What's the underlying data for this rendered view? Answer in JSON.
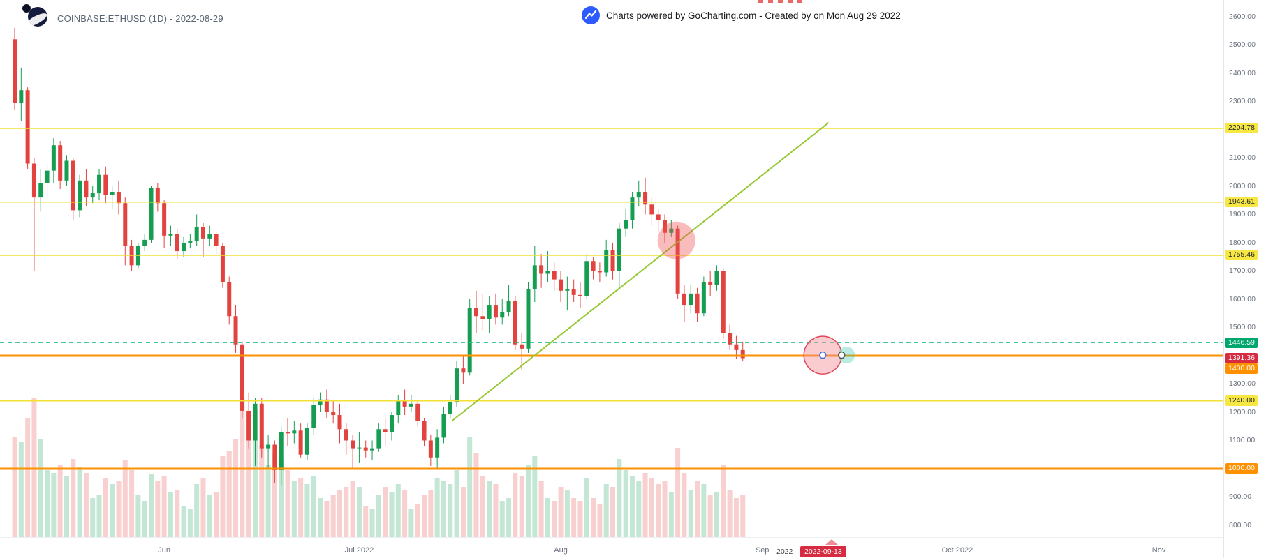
{
  "header": {
    "symbol_title": "COINBASE:ETHUSD (1D) - 2022-08-29",
    "powered_by": "Charts powered by GoCharting.com - Created by  on Mon Aug 29 2022"
  },
  "icons": {
    "logo": "gocharting-logo",
    "powered": "chart-line"
  },
  "colors": {
    "up": "#159d52",
    "down": "#e2433e",
    "volume_opacity": 0.25,
    "yellow_line": "#f2e032",
    "orange_line": "#ff9100",
    "teal_line": "#2bc08a",
    "trendline": "#97c832",
    "ellipse_fill": "rgba(240,80,80,0.38)",
    "selected_ellipse_fill": "rgba(244,143,150,0.45)",
    "selected_ellipse_stroke": "#e0485a",
    "handle_glow": "rgba(56,199,171,0.35)",
    "axis_text": "#69707d"
  },
  "chart_data": {
    "type": "candlestick",
    "title": "COINBASE:ETHUSD (1D) - 2022-08-29",
    "symbol": "COINBASE:ETHUSD",
    "interval": "1D",
    "last_price": {
      "value": 1391.36,
      "label": "1391.36"
    },
    "price_axis": {
      "min": 758,
      "max": 2659,
      "ticks": [
        2600,
        2500,
        2400,
        2300,
        2200,
        2100,
        2000,
        1900,
        1800,
        1700,
        1600,
        1500,
        1400,
        1300,
        1200,
        1100,
        1000,
        900,
        800
      ]
    },
    "time_axis": {
      "labels": [
        {
          "text": "Jun",
          "day": 23
        },
        {
          "text": "Jul 2022",
          "day": 53
        },
        {
          "text": "Aug",
          "day": 84
        },
        {
          "text": "Sep",
          "day": 115
        },
        {
          "text": "Oct 2022",
          "day": 145
        },
        {
          "text": "Nov",
          "day": 176
        }
      ]
    },
    "horizontal_lines": [
      {
        "price": 2204.78,
        "label": "2204.78",
        "style": "yellow"
      },
      {
        "price": 1943.61,
        "label": "1943.61",
        "style": "yellow"
      },
      {
        "price": 1755.46,
        "label": "1755.46",
        "style": "yellow"
      },
      {
        "price": 1240.0,
        "label": "1240.00",
        "style": "yellow"
      },
      {
        "price": 1400.0,
        "label": "1400.00",
        "style": "orange",
        "label_offset": 19
      },
      {
        "price": 1000.0,
        "label": "1000.00",
        "style": "orange"
      },
      {
        "price": 1446.59,
        "label": "1446.59",
        "style": "teal",
        "dashed": true
      }
    ],
    "trendline": {
      "from_day": 67.3,
      "from_price": 1170,
      "to_day": 125.2,
      "to_price": 2225
    },
    "ellipses": [
      {
        "day": 101.8,
        "price": 1808,
        "r": 27,
        "selected": false
      },
      {
        "day": 124.3,
        "price": 1402,
        "r": 27,
        "selected": true
      }
    ],
    "selection": {
      "left_text": "2022",
      "date_label": "2022-09-13"
    },
    "candles": [
      [
        2520,
        2560,
        2270,
        2295,
        72
      ],
      [
        2295,
        2420,
        2230,
        2340,
        68
      ],
      [
        2340,
        2350,
        2060,
        2080,
        85
      ],
      [
        2080,
        2100,
        1700,
        1960,
        100
      ],
      [
        1960,
        2060,
        1910,
        2010,
        70
      ],
      [
        2010,
        2080,
        1960,
        2055,
        48
      ],
      [
        2055,
        2170,
        2010,
        2145,
        46
      ],
      [
        2145,
        2160,
        1990,
        2020,
        52
      ],
      [
        2020,
        2110,
        2000,
        2090,
        44
      ],
      [
        2090,
        2100,
        1880,
        1915,
        56
      ],
      [
        1915,
        2040,
        1890,
        2020,
        50
      ],
      [
        2020,
        2060,
        1930,
        1960,
        46
      ],
      [
        1960,
        2000,
        1940,
        1975,
        28
      ],
      [
        1975,
        2060,
        1950,
        2040,
        30
      ],
      [
        2040,
        2070,
        1940,
        1970,
        42
      ],
      [
        1970,
        2000,
        1920,
        1980,
        38
      ],
      [
        1980,
        2020,
        1900,
        1940,
        40
      ],
      [
        1940,
        1960,
        1720,
        1790,
        55
      ],
      [
        1790,
        1810,
        1700,
        1720,
        48
      ],
      [
        1720,
        1800,
        1710,
        1790,
        30
      ],
      [
        1790,
        1830,
        1770,
        1810,
        26
      ],
      [
        1810,
        2000,
        1800,
        1995,
        45
      ],
      [
        1995,
        2010,
        1910,
        1940,
        40
      ],
      [
        1940,
        1950,
        1780,
        1825,
        44
      ],
      [
        1825,
        1860,
        1790,
        1830,
        32
      ],
      [
        1830,
        1850,
        1740,
        1770,
        34
      ],
      [
        1770,
        1820,
        1750,
        1800,
        22
      ],
      [
        1800,
        1830,
        1780,
        1805,
        20
      ],
      [
        1805,
        1900,
        1790,
        1855,
        38
      ],
      [
        1855,
        1870,
        1750,
        1815,
        42
      ],
      [
        1815,
        1860,
        1790,
        1830,
        30
      ],
      [
        1830,
        1840,
        1760,
        1790,
        32
      ],
      [
        1790,
        1800,
        1640,
        1660,
        58
      ],
      [
        1660,
        1680,
        1510,
        1540,
        62
      ],
      [
        1540,
        1580,
        1410,
        1440,
        70
      ],
      [
        1440,
        1450,
        1180,
        1205,
        100
      ],
      [
        1205,
        1270,
        1070,
        1100,
        88
      ],
      [
        1100,
        1250,
        1010,
        1230,
        92
      ],
      [
        1230,
        1250,
        1040,
        1070,
        66
      ],
      [
        1070,
        1120,
        1000,
        1085,
        52
      ],
      [
        1085,
        1100,
        950,
        995,
        60
      ],
      [
        995,
        1150,
        940,
        1130,
        55
      ],
      [
        1130,
        1180,
        1080,
        1125,
        48
      ],
      [
        1125,
        1170,
        1090,
        1135,
        40
      ],
      [
        1135,
        1160,
        1040,
        1050,
        42
      ],
      [
        1050,
        1160,
        1030,
        1145,
        38
      ],
      [
        1145,
        1250,
        1120,
        1225,
        44
      ],
      [
        1225,
        1270,
        1200,
        1245,
        28
      ],
      [
        1245,
        1280,
        1180,
        1200,
        26
      ],
      [
        1200,
        1240,
        1160,
        1190,
        30
      ],
      [
        1190,
        1230,
        1090,
        1140,
        34
      ],
      [
        1140,
        1160,
        1050,
        1100,
        36
      ],
      [
        1100,
        1120,
        1000,
        1070,
        40
      ],
      [
        1070,
        1130,
        1020,
        1075,
        36
      ],
      [
        1075,
        1100,
        1040,
        1065,
        22
      ],
      [
        1065,
        1100,
        1030,
        1070,
        20
      ],
      [
        1070,
        1160,
        1060,
        1140,
        30
      ],
      [
        1140,
        1180,
        1080,
        1130,
        36
      ],
      [
        1130,
        1200,
        1100,
        1190,
        32
      ],
      [
        1190,
        1260,
        1160,
        1240,
        38
      ],
      [
        1240,
        1280,
        1190,
        1220,
        34
      ],
      [
        1220,
        1260,
        1200,
        1230,
        20
      ],
      [
        1230,
        1240,
        1150,
        1170,
        24
      ],
      [
        1170,
        1180,
        1080,
        1100,
        30
      ],
      [
        1100,
        1120,
        1010,
        1040,
        34
      ],
      [
        1040,
        1140,
        1000,
        1110,
        42
      ],
      [
        1110,
        1220,
        1090,
        1195,
        40
      ],
      [
        1195,
        1260,
        1180,
        1235,
        38
      ],
      [
        1235,
        1380,
        1220,
        1355,
        48
      ],
      [
        1355,
        1400,
        1300,
        1340,
        36
      ],
      [
        1340,
        1600,
        1330,
        1570,
        72
      ],
      [
        1570,
        1630,
        1480,
        1540,
        60
      ],
      [
        1540,
        1620,
        1490,
        1530,
        44
      ],
      [
        1530,
        1610,
        1480,
        1580,
        40
      ],
      [
        1580,
        1620,
        1510,
        1535,
        38
      ],
      [
        1535,
        1600,
        1510,
        1555,
        26
      ],
      [
        1555,
        1650,
        1540,
        1595,
        28
      ],
      [
        1595,
        1610,
        1420,
        1440,
        46
      ],
      [
        1440,
        1480,
        1350,
        1425,
        44
      ],
      [
        1425,
        1660,
        1410,
        1635,
        52
      ],
      [
        1635,
        1790,
        1590,
        1720,
        58
      ],
      [
        1720,
        1760,
        1640,
        1690,
        40
      ],
      [
        1690,
        1770,
        1660,
        1700,
        28
      ],
      [
        1700,
        1730,
        1630,
        1670,
        26
      ],
      [
        1670,
        1700,
        1590,
        1630,
        36
      ],
      [
        1630,
        1680,
        1560,
        1635,
        34
      ],
      [
        1635,
        1670,
        1590,
        1615,
        28
      ],
      [
        1615,
        1660,
        1570,
        1610,
        26
      ],
      [
        1610,
        1760,
        1600,
        1735,
        42
      ],
      [
        1735,
        1750,
        1670,
        1700,
        28
      ],
      [
        1700,
        1730,
        1660,
        1695,
        24
      ],
      [
        1695,
        1810,
        1680,
        1775,
        38
      ],
      [
        1775,
        1800,
        1670,
        1700,
        36
      ],
      [
        1700,
        1870,
        1640,
        1850,
        56
      ],
      [
        1850,
        1920,
        1820,
        1880,
        48
      ],
      [
        1880,
        1980,
        1850,
        1960,
        44
      ],
      [
        1960,
        2020,
        1930,
        1980,
        40
      ],
      [
        1980,
        2030,
        1900,
        1935,
        46
      ],
      [
        1935,
        1960,
        1860,
        1900,
        42
      ],
      [
        1900,
        1920,
        1840,
        1880,
        38
      ],
      [
        1880,
        1900,
        1800,
        1835,
        40
      ],
      [
        1835,
        1880,
        1820,
        1850,
        32
      ],
      [
        1850,
        1860,
        1600,
        1620,
        64
      ],
      [
        1620,
        1650,
        1520,
        1580,
        46
      ],
      [
        1580,
        1650,
        1550,
        1620,
        34
      ],
      [
        1620,
        1640,
        1520,
        1550,
        40
      ],
      [
        1550,
        1680,
        1540,
        1660,
        38
      ],
      [
        1660,
        1700,
        1610,
        1650,
        30
      ],
      [
        1650,
        1720,
        1630,
        1700,
        32
      ],
      [
        1700,
        1710,
        1460,
        1480,
        52
      ],
      [
        1480,
        1510,
        1420,
        1440,
        34
      ],
      [
        1440,
        1470,
        1390,
        1420,
        28
      ],
      [
        1420,
        1450,
        1380,
        1391.36,
        30
      ]
    ]
  }
}
